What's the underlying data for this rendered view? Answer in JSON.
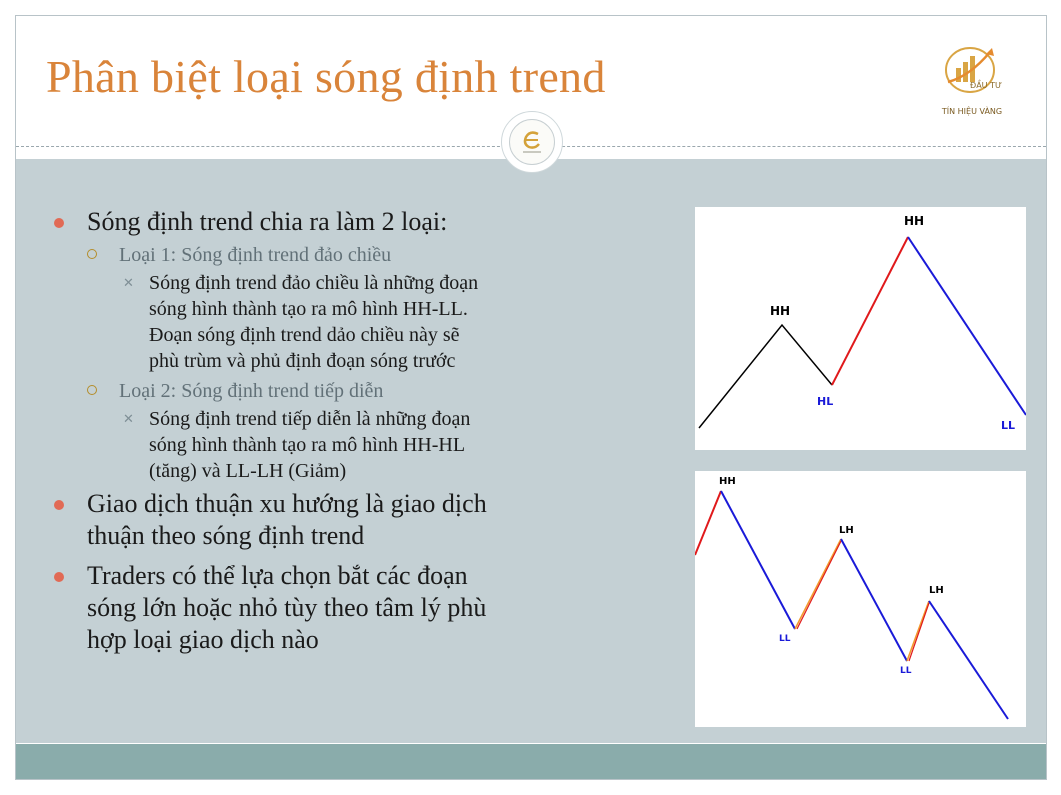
{
  "slide": {
    "title": "Phân biệt loại sóng định trend",
    "logo": {
      "line1": "ĐẦU TƯ",
      "line2": "TÍN HIỆU VÀNG"
    },
    "colors": {
      "title": "#d9843a",
      "body_bg": "#c4d0d4",
      "footer": "#8aacab",
      "bullet": "#e16a55"
    }
  },
  "content": {
    "point1": "Sóng định trend chia ra làm 2 loại:",
    "sub1": "Loại 1: Sóng định trend đảo chiều",
    "sub1_detail": [
      "Sóng định trend đảo chiều là những đoạn",
      "sóng hình thành tạo ra mô hình HH-LL.",
      "Đoạn sóng định trend dảo chiều này sẽ",
      "phù trùm và phủ định đoạn sóng trước"
    ],
    "sub2": "Loại 2: Sóng định trend tiếp diễn",
    "sub2_detail": [
      "Sóng định trend tiếp diễn là những đoạn",
      "sóng hình thành tạo ra mô hình HH-HL",
      "(tăng) và LL-LH (Giảm)"
    ],
    "point2": [
      "Giao dịch thuận xu hướng là giao dịch",
      "thuận theo sóng định trend"
    ],
    "point3": [
      "Traders có thể lựa chọn bắt các đoạn",
      "sóng lớn hoặc nhỏ tùy theo tâm lý phù",
      "hợp loại giao dịch nào"
    ]
  },
  "diagram1": {
    "labels": {
      "hh1": "HH",
      "hh2": "HH",
      "hl": "HL",
      "ll": "LL"
    },
    "colors": {
      "up_black": "#000000",
      "up_red": "#e0191b",
      "down_blue": "#1a1ad8"
    }
  },
  "diagram2": {
    "labels": {
      "hh": "HH",
      "ll1": "LL",
      "lh1": "LH",
      "ll2": "LL",
      "lh2": "LH"
    },
    "colors": {
      "up_red": "#e0191b",
      "down_blue": "#1a1ad8",
      "orange": "#f29a2e"
    }
  }
}
